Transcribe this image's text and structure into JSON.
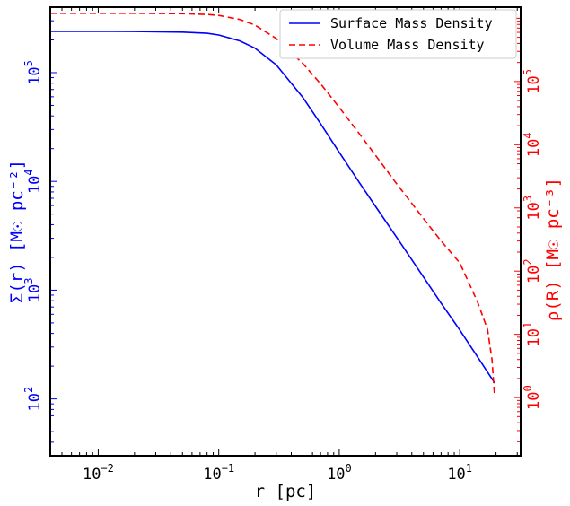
{
  "chart_data": {
    "type": "line",
    "title": "",
    "xlabel": "r [pc]",
    "ylabel_left": "Σ(r) [M☉ pc⁻²]",
    "ylabel_right": "ρ(R) [M☉ pc⁻³]",
    "xscale": "log",
    "yscale_left": "log",
    "yscale_right": "log",
    "xlim": [
      0.004,
      32
    ],
    "ylim_left": [
      30,
      400000
    ],
    "ylim_right": [
      0.12,
      1500000
    ],
    "x_tick_labels": [
      {
        "value": 0.01,
        "base": "10",
        "exp": "−2"
      },
      {
        "value": 0.1,
        "base": "10",
        "exp": "−1"
      },
      {
        "value": 1,
        "base": "10",
        "exp": "0"
      },
      {
        "value": 10,
        "base": "10",
        "exp": "1"
      }
    ],
    "y_left_tick_labels": [
      {
        "value": 100,
        "base": "10",
        "exp": "2"
      },
      {
        "value": 1000,
        "base": "10",
        "exp": "3"
      },
      {
        "value": 10000,
        "base": "10",
        "exp": "4"
      },
      {
        "value": 100000,
        "base": "10",
        "exp": "5"
      }
    ],
    "y_right_tick_labels": [
      {
        "value": 1,
        "base": "10",
        "exp": "0"
      },
      {
        "value": 10,
        "base": "10",
        "exp": "1"
      },
      {
        "value": 100,
        "base": "10",
        "exp": "2"
      },
      {
        "value": 1000,
        "base": "10",
        "exp": "3"
      },
      {
        "value": 10000,
        "base": "10",
        "exp": "4"
      },
      {
        "value": 100000,
        "base": "10",
        "exp": "5"
      }
    ],
    "legend_position": "top-right",
    "grid": false,
    "series": [
      {
        "name": "Surface Mass Density",
        "axis": "left",
        "color": "#0000ff",
        "style": "solid",
        "x": [
          0.004,
          0.01,
          0.02,
          0.05,
          0.08,
          0.1,
          0.15,
          0.2,
          0.3,
          0.5,
          0.7,
          1,
          1.5,
          2,
          3,
          5,
          7,
          10,
          15,
          19.5
        ],
        "y": [
          240000,
          240000,
          239000,
          236000,
          230000,
          222000,
          196000,
          168000,
          118000,
          59000,
          34000,
          18500,
          9400,
          5900,
          3050,
          1320,
          760,
          430,
          218,
          140
        ]
      },
      {
        "name": "Volume Mass Density",
        "axis": "right",
        "color": "#ff0000",
        "style": "dashed",
        "x": [
          0.004,
          0.01,
          0.02,
          0.05,
          0.08,
          0.1,
          0.15,
          0.2,
          0.3,
          0.5,
          0.7,
          1,
          1.5,
          2,
          3,
          5,
          7,
          10,
          14,
          17,
          18.5,
          19.5
        ],
        "y": [
          1200000,
          1200000,
          1200000,
          1180000,
          1150000,
          1110000,
          960000,
          780000,
          480000,
          192000,
          92000,
          39000,
          14100,
          6800,
          2400,
          680,
          300,
          135,
          33,
          12,
          4,
          1
        ]
      }
    ]
  }
}
